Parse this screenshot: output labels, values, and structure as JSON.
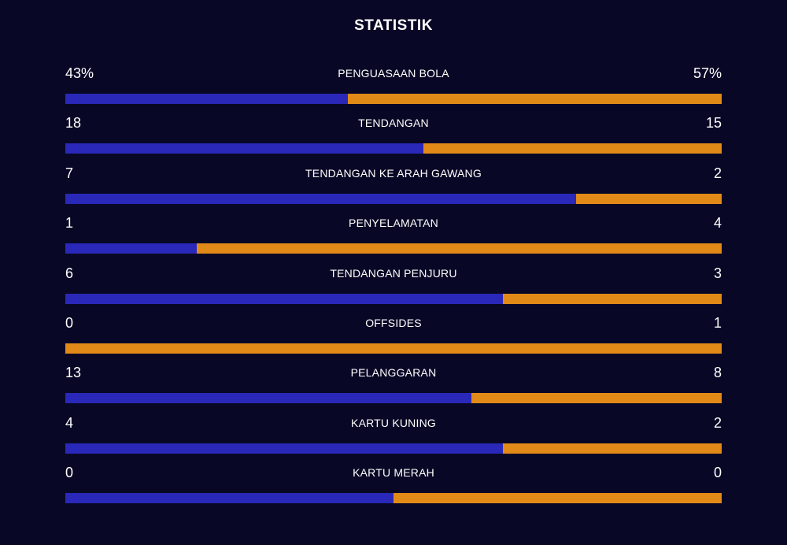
{
  "header": {
    "title": "STATISTIK"
  },
  "colors": {
    "background": "#080826",
    "home": "#2a28b8",
    "away": "#e28a18",
    "text": "#ffffff"
  },
  "stats": [
    {
      "label": "PENGUASAAN BOLA",
      "home": "43%",
      "away": "57%",
      "home_share": 0.43
    },
    {
      "label": "TENDANGAN",
      "home": "18",
      "away": "15",
      "home_share": 0.5455
    },
    {
      "label": "TENDANGAN KE ARAH GAWANG",
      "home": "7",
      "away": "2",
      "home_share": 0.7778
    },
    {
      "label": "PENYELAMATAN",
      "home": "1",
      "away": "4",
      "home_share": 0.2
    },
    {
      "label": "TENDANGAN PENJURU",
      "home": "6",
      "away": "3",
      "home_share": 0.6667
    },
    {
      "label": "OFFSIDES",
      "home": "0",
      "away": "1",
      "home_share": 0.0
    },
    {
      "label": "PELANGGARAN",
      "home": "13",
      "away": "8",
      "home_share": 0.619
    },
    {
      "label": "KARTU KUNING",
      "home": "4",
      "away": "2",
      "home_share": 0.6667
    },
    {
      "label": "KARTU MERAH",
      "home": "0",
      "away": "0",
      "home_share": 0.5
    }
  ]
}
